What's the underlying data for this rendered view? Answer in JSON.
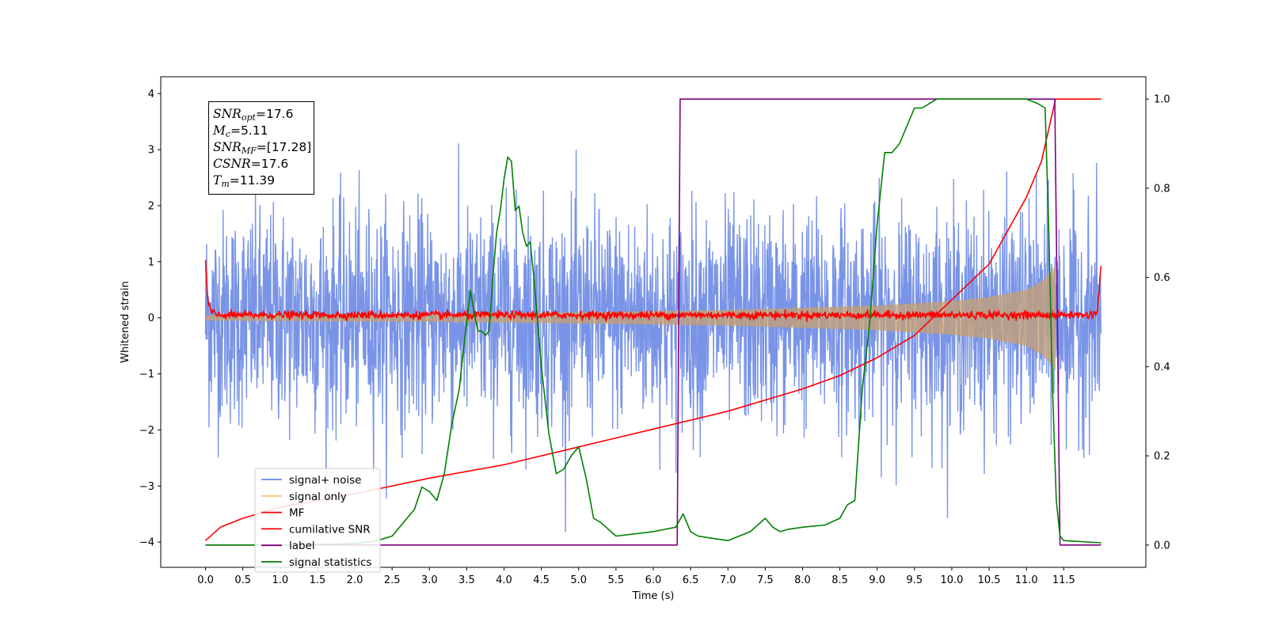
{
  "annotation": {
    "snr_opt": {
      "sym": "SNR",
      "sub": "opt",
      "value": "17.6"
    },
    "mc": {
      "sym": "M",
      "sub": "c",
      "value": "5.11"
    },
    "snr_mf": {
      "sym": "SNR",
      "sub": "MF",
      "value": "[17.28]"
    },
    "csnr": {
      "sym": "CSNR",
      "sub": "",
      "value": "17.6"
    },
    "tm": {
      "sym": "T",
      "sub": "m",
      "value": "11.39"
    }
  },
  "chart_data": {
    "type": "line",
    "title": "",
    "xlabel": "Time (s)",
    "ylabel": "Whitened strain",
    "ylabel_right": "",
    "xlim": [
      -0.6,
      12.6
    ],
    "ylim": [
      -4.45,
      4.3
    ],
    "ylim_right": [
      -0.05,
      1.05
    ],
    "x_ticks": [
      "0.0",
      "0.5",
      "1.0",
      "1.5",
      "2.0",
      "2.5",
      "3.0",
      "3.5",
      "4.0",
      "4.5",
      "5.0",
      "5.5",
      "6.0",
      "6.5",
      "7.0",
      "7.5",
      "8.0",
      "8.5",
      "9.0",
      "9.5",
      "10.0",
      "10.5",
      "11.0",
      "11.5"
    ],
    "y_ticks": [
      "−4",
      "−3",
      "−2",
      "−1",
      "0",
      "1",
      "2",
      "3",
      "4"
    ],
    "y_ticks_right": [
      "0.0",
      "0.2",
      "0.4",
      "0.6",
      "0.8",
      "1.0"
    ],
    "grid": false,
    "legend_position": "lower-left",
    "colors": {
      "noise": "#6a88e4",
      "signal": "#f5c87a",
      "mf": "#ff0000",
      "csnr": "#ff0000",
      "label": "#800080",
      "stat": "#008000"
    },
    "series": [
      {
        "name": "signal+ noise",
        "axis": "left",
        "kind": "noise",
        "x_range": [
          0,
          12.0
        ],
        "std": 1.0,
        "envelope_note": "signal amplitude grows toward merger at 11.39 s"
      },
      {
        "name": "signal only",
        "axis": "left",
        "kind": "chirp-envelope",
        "x": [
          0,
          3.0,
          5.0,
          7.0,
          8.0,
          9.0,
          10.0,
          10.5,
          11.0,
          11.2,
          11.35,
          11.39
        ],
        "y": [
          0.05,
          0.07,
          0.1,
          0.14,
          0.18,
          0.22,
          0.3,
          0.37,
          0.5,
          0.65,
          0.85,
          0.95
        ]
      },
      {
        "name": "MF",
        "axis": "left",
        "kind": "mf",
        "x": [
          0,
          0.03,
          0.08,
          0.15,
          11.85,
          11.95,
          12.0
        ],
        "y": [
          1.0,
          0.3,
          0.1,
          0.05,
          0.05,
          0.1,
          0.95
        ]
      },
      {
        "name": "cumilative SNR",
        "axis": "right",
        "x": [
          0,
          0.2,
          0.5,
          1.0,
          1.5,
          2.0,
          3.0,
          4.0,
          5.0,
          6.0,
          7.0,
          8.0,
          8.5,
          9.0,
          9.5,
          10.0,
          10.5,
          11.0,
          11.2,
          11.39,
          12.0
        ],
        "y": [
          0.01,
          0.04,
          0.06,
          0.085,
          0.1,
          0.115,
          0.15,
          0.18,
          0.22,
          0.26,
          0.3,
          0.35,
          0.38,
          0.42,
          0.47,
          0.55,
          0.63,
          0.78,
          0.86,
          1.0,
          1.0
        ]
      },
      {
        "name": "label",
        "axis": "right",
        "x": [
          0,
          6.32,
          6.36,
          11.38,
          11.45,
          12.0
        ],
        "y": [
          0.0,
          0.0,
          1.0,
          1.0,
          0.0,
          0.0
        ]
      },
      {
        "name": "signal statistics",
        "axis": "right",
        "x": [
          0,
          1.0,
          2.0,
          2.3,
          2.5,
          2.7,
          2.8,
          2.9,
          3.0,
          3.1,
          3.2,
          3.3,
          3.4,
          3.45,
          3.5,
          3.55,
          3.6,
          3.65,
          3.7,
          3.75,
          3.8,
          3.85,
          3.9,
          3.95,
          4.0,
          4.05,
          4.1,
          4.15,
          4.2,
          4.25,
          4.3,
          4.35,
          4.4,
          4.5,
          4.6,
          4.7,
          4.8,
          4.9,
          5.0,
          5.1,
          5.2,
          5.3,
          5.5,
          6.0,
          6.3,
          6.4,
          6.5,
          6.6,
          6.8,
          7.0,
          7.3,
          7.5,
          7.6,
          7.7,
          7.8,
          8.0,
          8.3,
          8.5,
          8.6,
          8.7,
          8.8,
          8.9,
          9.0,
          9.1,
          9.2,
          9.3,
          9.4,
          9.5,
          9.6,
          9.7,
          9.8,
          10.0,
          10.5,
          11.0,
          11.15,
          11.25,
          11.3,
          11.35,
          11.4,
          11.45,
          11.5,
          12.0
        ],
        "y": [
          0.0,
          0.0,
          0.003,
          0.01,
          0.02,
          0.06,
          0.08,
          0.13,
          0.12,
          0.1,
          0.16,
          0.27,
          0.35,
          0.43,
          0.5,
          0.57,
          0.52,
          0.48,
          0.48,
          0.47,
          0.48,
          0.6,
          0.7,
          0.75,
          0.82,
          0.87,
          0.86,
          0.75,
          0.76,
          0.7,
          0.67,
          0.68,
          0.6,
          0.4,
          0.25,
          0.16,
          0.17,
          0.2,
          0.22,
          0.15,
          0.06,
          0.05,
          0.02,
          0.03,
          0.04,
          0.07,
          0.03,
          0.02,
          0.015,
          0.01,
          0.03,
          0.06,
          0.04,
          0.03,
          0.035,
          0.04,
          0.045,
          0.06,
          0.09,
          0.1,
          0.35,
          0.5,
          0.72,
          0.88,
          0.88,
          0.9,
          0.94,
          0.98,
          0.98,
          0.99,
          1.0,
          1.0,
          1.0,
          1.0,
          0.99,
          0.98,
          0.7,
          0.35,
          0.1,
          0.02,
          0.01,
          0.005
        ]
      }
    ]
  }
}
